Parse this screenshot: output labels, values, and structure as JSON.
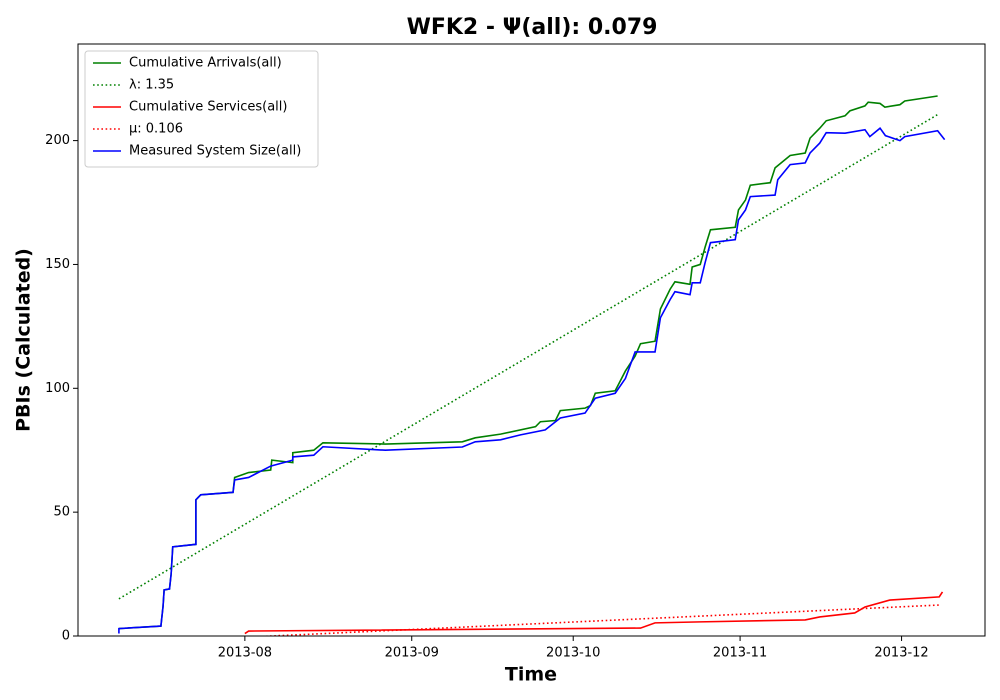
{
  "chart_data": {
    "type": "line",
    "title": "WFK2 -  Ψ(all): 0.079",
    "xlabel": "Time",
    "ylabel": "PBIs (Calculated)",
    "xlim": [
      0,
      168.5
    ],
    "ylim": [
      0,
      239
    ],
    "xticks": [
      {
        "value": 31,
        "label": "2013-08"
      },
      {
        "value": 62,
        "label": "2013-09"
      },
      {
        "value": 92,
        "label": "2013-10"
      },
      {
        "value": 123,
        "label": "2013-11"
      },
      {
        "value": 153,
        "label": "2013-12"
      }
    ],
    "yticks": [
      0,
      50,
      100,
      150,
      200
    ],
    "legend": "upper left",
    "series": [
      {
        "name": "Cumulative Arrivals(all)",
        "color": "#008000",
        "style": "solid",
        "x": [
          7.6,
          15.4,
          15.8,
          16,
          17,
          17.3,
          17.6,
          21.9,
          21.9,
          22.8,
          28.8,
          29.1,
          31.7,
          35.8,
          36,
          39.9,
          39.9,
          43.8,
          45.5,
          57.1,
          71.4,
          73.8,
          78.5,
          85,
          85.9,
          88.7,
          89.6,
          94.2,
          95.2,
          96.1,
          99.8,
          101.7,
          103.5,
          104.5,
          107.2,
          108.2,
          110,
          110.9,
          113.7,
          114.1,
          115.6,
          116.5,
          117.5,
          122.1,
          122.7,
          124,
          124.9,
          128.6,
          129.5,
          132.3,
          135.1,
          136,
          137.8,
          139,
          142.5,
          143.4,
          146.2,
          146.8,
          149,
          149.9,
          152.7,
          153.6,
          159.7
        ],
        "values": [
          3,
          4,
          12,
          18.6,
          19,
          25,
          36,
          37,
          55,
          57,
          58,
          64,
          66,
          67,
          71,
          70,
          74,
          75,
          78,
          77.5,
          78.4,
          80,
          81.5,
          84.5,
          86.5,
          87,
          91,
          92,
          93,
          98,
          99,
          107,
          113,
          118,
          119,
          132,
          140,
          143,
          142,
          149,
          150,
          157,
          164,
          165,
          172,
          176,
          182,
          183,
          189,
          194,
          195,
          201,
          205,
          208,
          210,
          212,
          214,
          215.5,
          215,
          213.5,
          214.5,
          216,
          218
        ]
      },
      {
        "name": "λ: 1.35",
        "color": "#008000",
        "style": "dotted",
        "x": [
          7.6,
          159.7
        ],
        "values": [
          15,
          210.5
        ]
      },
      {
        "name": "Cumulative Services(all)",
        "color": "#ff0000",
        "style": "solid",
        "x": [
          31,
          31.7,
          104.5,
          107.2,
          115.6,
          135.1,
          137.8,
          144.3,
          146.2,
          150.8,
          160,
          160.6
        ],
        "values": [
          1,
          2,
          3.2,
          5.3,
          5.7,
          6.5,
          7.7,
          9.3,
          11.7,
          14.5,
          15.8,
          17.8
        ]
      },
      {
        "name": "μ: 0.106",
        "color": "#ff0000",
        "style": "dotted",
        "x": [
          31,
          160
        ],
        "values": [
          -0.5,
          12.5
        ]
      },
      {
        "name": "Measured System Size(all)",
        "color": "#0000ff",
        "style": "solid",
        "x": [
          7.6,
          7.6,
          15.4,
          15.8,
          16,
          17,
          17.3,
          17.6,
          21.9,
          21.9,
          22.8,
          28.8,
          29.1,
          31.7,
          35.8,
          39.9,
          39.9,
          43.8,
          45.5,
          57.1,
          71.4,
          73.8,
          78.5,
          82.2,
          86.8,
          89.6,
          94.2,
          96.1,
          99.8,
          101.7,
          103.5,
          107.2,
          108.2,
          110,
          110.9,
          113.7,
          114.1,
          115.6,
          116.5,
          117.5,
          122.1,
          122.7,
          124,
          124.9,
          129.5,
          130,
          132.3,
          135.1,
          136,
          137.8,
          139,
          142.5,
          146.2,
          147.1,
          149,
          150,
          152.7,
          153.6,
          159.7,
          161
        ],
        "values": [
          1,
          3,
          4,
          12,
          18.6,
          19,
          25,
          36,
          37,
          55,
          57,
          58,
          63,
          64,
          68.6,
          71,
          72.3,
          73,
          76.4,
          75,
          76.3,
          78.4,
          79.2,
          81.2,
          83.2,
          88,
          90,
          96,
          98,
          104,
          114.7,
          114.7,
          128.5,
          135.8,
          139,
          137.8,
          142.6,
          142.6,
          150.7,
          158.8,
          160,
          168,
          172,
          177.4,
          178,
          184.2,
          190.3,
          191,
          195,
          199,
          203.2,
          203,
          204.4,
          201.6,
          205,
          202,
          200,
          201.6,
          204,
          200.4
        ]
      }
    ]
  }
}
